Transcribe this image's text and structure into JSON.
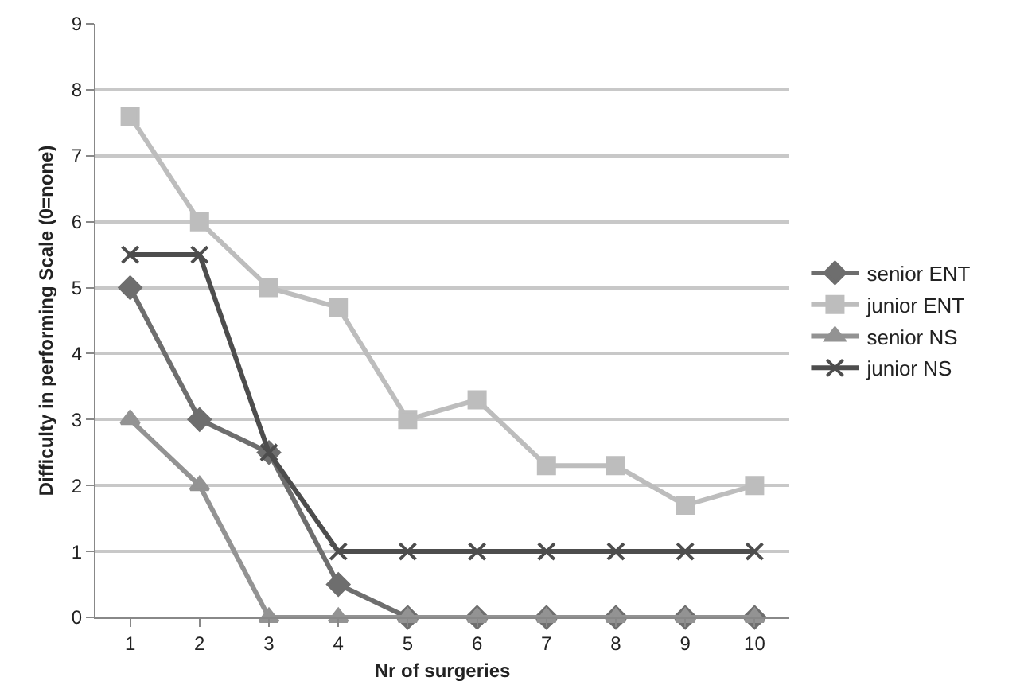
{
  "chart_data": {
    "type": "line",
    "xlabel": "Nr of surgeries",
    "ylabel": "Difficulty in performing Scale (0=none)",
    "categories": [
      "1",
      "2",
      "3",
      "4",
      "5",
      "6",
      "7",
      "8",
      "9",
      "10"
    ],
    "ylim": [
      0,
      9
    ],
    "yticks": [
      0,
      1,
      2,
      3,
      4,
      5,
      6,
      7,
      8,
      9
    ],
    "grid": "y",
    "legend": "right",
    "line_style": "solid",
    "series": [
      {
        "name": "senior ENT",
        "color": "#6e6e6e",
        "marker": "diamond",
        "values": [
          5,
          3,
          2.5,
          0.5,
          0,
          0,
          0,
          0,
          0,
          0
        ]
      },
      {
        "name": "junior ENT",
        "color": "#bdbdbd",
        "marker": "square",
        "values": [
          7.6,
          6,
          5,
          4.7,
          3,
          3.3,
          2.3,
          2.3,
          1.7,
          2
        ]
      },
      {
        "name": "senior NS",
        "color": "#939393",
        "marker": "triangle",
        "values": [
          3,
          2,
          0,
          0,
          0,
          0,
          0,
          0,
          0,
          0
        ]
      },
      {
        "name": "junior NS",
        "color": "#4d4d4d",
        "marker": "cross",
        "values": [
          5.5,
          5.5,
          2.5,
          1,
          1,
          1,
          1,
          1,
          1,
          1
        ]
      }
    ]
  }
}
